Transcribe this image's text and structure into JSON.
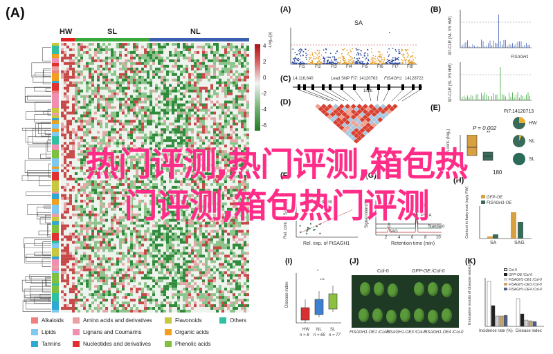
{
  "panel_labels": {
    "A_big": "(A)",
    "A": "(A)",
    "B": "(B)",
    "C": "(C)",
    "D": "(D)",
    "E": "(E)",
    "F": "(F)",
    "G": "(G)",
    "H": "(H)",
    "I": "(I)",
    "J": "(J)",
    "K": "(K)"
  },
  "heatmap": {
    "groups": [
      "HW",
      "SL",
      "NL"
    ],
    "group_colors": {
      "HW": "#e02020",
      "SL": "#3aa83a",
      "NL": "#3d5fb0"
    },
    "scale_ticks": [
      "4",
      "2",
      "0",
      "-2",
      "-4",
      "-6"
    ],
    "legend": [
      {
        "label": "Alkaloids",
        "color": "#f08080"
      },
      {
        "label": "Amino acids and derivatives",
        "color": "#e8a0a0"
      },
      {
        "label": "Flavonoids",
        "color": "#c8c840"
      },
      {
        "label": "Others",
        "color": "#30c0a0"
      },
      {
        "label": "Lipids",
        "color": "#80c8f0"
      },
      {
        "label": "Lignans and Coumarins",
        "color": "#f090b0"
      },
      {
        "label": "Organic acids",
        "color": "#f0a020"
      },
      {
        "label": "Tannins",
        "color": "#30a8d0"
      },
      {
        "label": "Nucleotides and derivatives",
        "color": "#e03030"
      },
      {
        "label": "Phenolic acids",
        "color": "#80c040"
      }
    ]
  },
  "manhattan": {
    "title": "SA",
    "ylabel": "-Log₁₀(p)",
    "chromosomes": [
      "Ft1",
      "Ft2",
      "Ft3",
      "Ft4",
      "Ft5",
      "Ft6",
      "Ft7",
      "Ft8"
    ],
    "colors": [
      "#2e4a9e",
      "#e8a030"
    ]
  },
  "panel_b": {
    "top_ylabel": "XP-CLR (NL VS HW)",
    "bottom_ylabel": "XP-CLR (SL VS HW)",
    "gene_label": "FtSAGH1",
    "x_ticks": [
      "0",
      "20",
      "40",
      "60",
      "80",
      "100",
      "120",
      "140",
      "160"
    ]
  },
  "panel_c": {
    "left_pos": "14,116,640",
    "lead_snp": "Lead SNP Ft7: 14120763",
    "right_pos": "14128722",
    "scale": "10kb",
    "gene": "FtSAGH1"
  },
  "panel_e": {
    "ylabel": "SA cont. (log₂)",
    "pvalue": "P = 0.002",
    "sig": "**",
    "snp_label": "Ft7:14120713",
    "extra": "180",
    "pies": [
      "HW",
      "NL",
      "SL"
    ]
  },
  "panel_f": {
    "xlabel": "Rel. exp. of FtSAGH1",
    "ylabel": "Rel. cont. of SA (log₂)",
    "eq": "y=1.86x+3.639",
    "legend": "Hap.A"
  },
  "panel_g": {
    "ylabel": "Signal intensity",
    "xlabel": "Retention time (min)",
    "ticks": [
      "2",
      "4",
      "6",
      "8",
      "10"
    ],
    "peaks": [
      "SAG",
      "SA",
      "P+SA",
      "Standard"
    ]
  },
  "panel_h": {
    "legend": [
      "GFP-OE",
      "FtSAGH1-OE"
    ],
    "legend_colors": [
      "#d8a040",
      "#3a6b5a"
    ],
    "ylabel": "Content in hairy root (ng/g FW)",
    "categories": [
      "SA",
      "SAG"
    ],
    "y_ticks": [
      "0",
      "20",
      "40",
      "60",
      "80"
    ]
  },
  "panel_i": {
    "ylabel": "Disease index",
    "groups": [
      "HW",
      "NL",
      "SL"
    ],
    "ns": [
      "n = 8",
      "n = 65",
      "n = 77"
    ],
    "y_ticks": [
      "0",
      "20",
      "40",
      "60",
      "80",
      "100"
    ],
    "sig": [
      "*",
      "***"
    ]
  },
  "panel_j": {
    "top_labels": [
      "Col-0",
      "GFP-OE /Col-0"
    ],
    "bottom_labels": [
      "FtSAGH1-OE1 /Col-0",
      "FtSAGH1-OE3 /Col-0",
      "FtSAGH1-OE4 /Col-0"
    ]
  },
  "panel_k": {
    "ylabel": "Evaluation results of disease resistance",
    "legend": [
      "Col-0",
      "GFP-OE /Col-0",
      "FtSAGH1-OE1 /Col-0",
      "FtSAGH1-OE3 /Col-0",
      "FtSAGH1-OE4 /Col-0"
    ],
    "categories": [
      "Incidence rate (%)",
      "Disease index"
    ],
    "y_ticks": [
      "0",
      "20",
      "40",
      "60",
      "80",
      "100",
      "120"
    ]
  },
  "overlay": {
    "line1": "热门评测,热门评测,箱包热",
    "line2": "门评测,箱包热门评测"
  }
}
